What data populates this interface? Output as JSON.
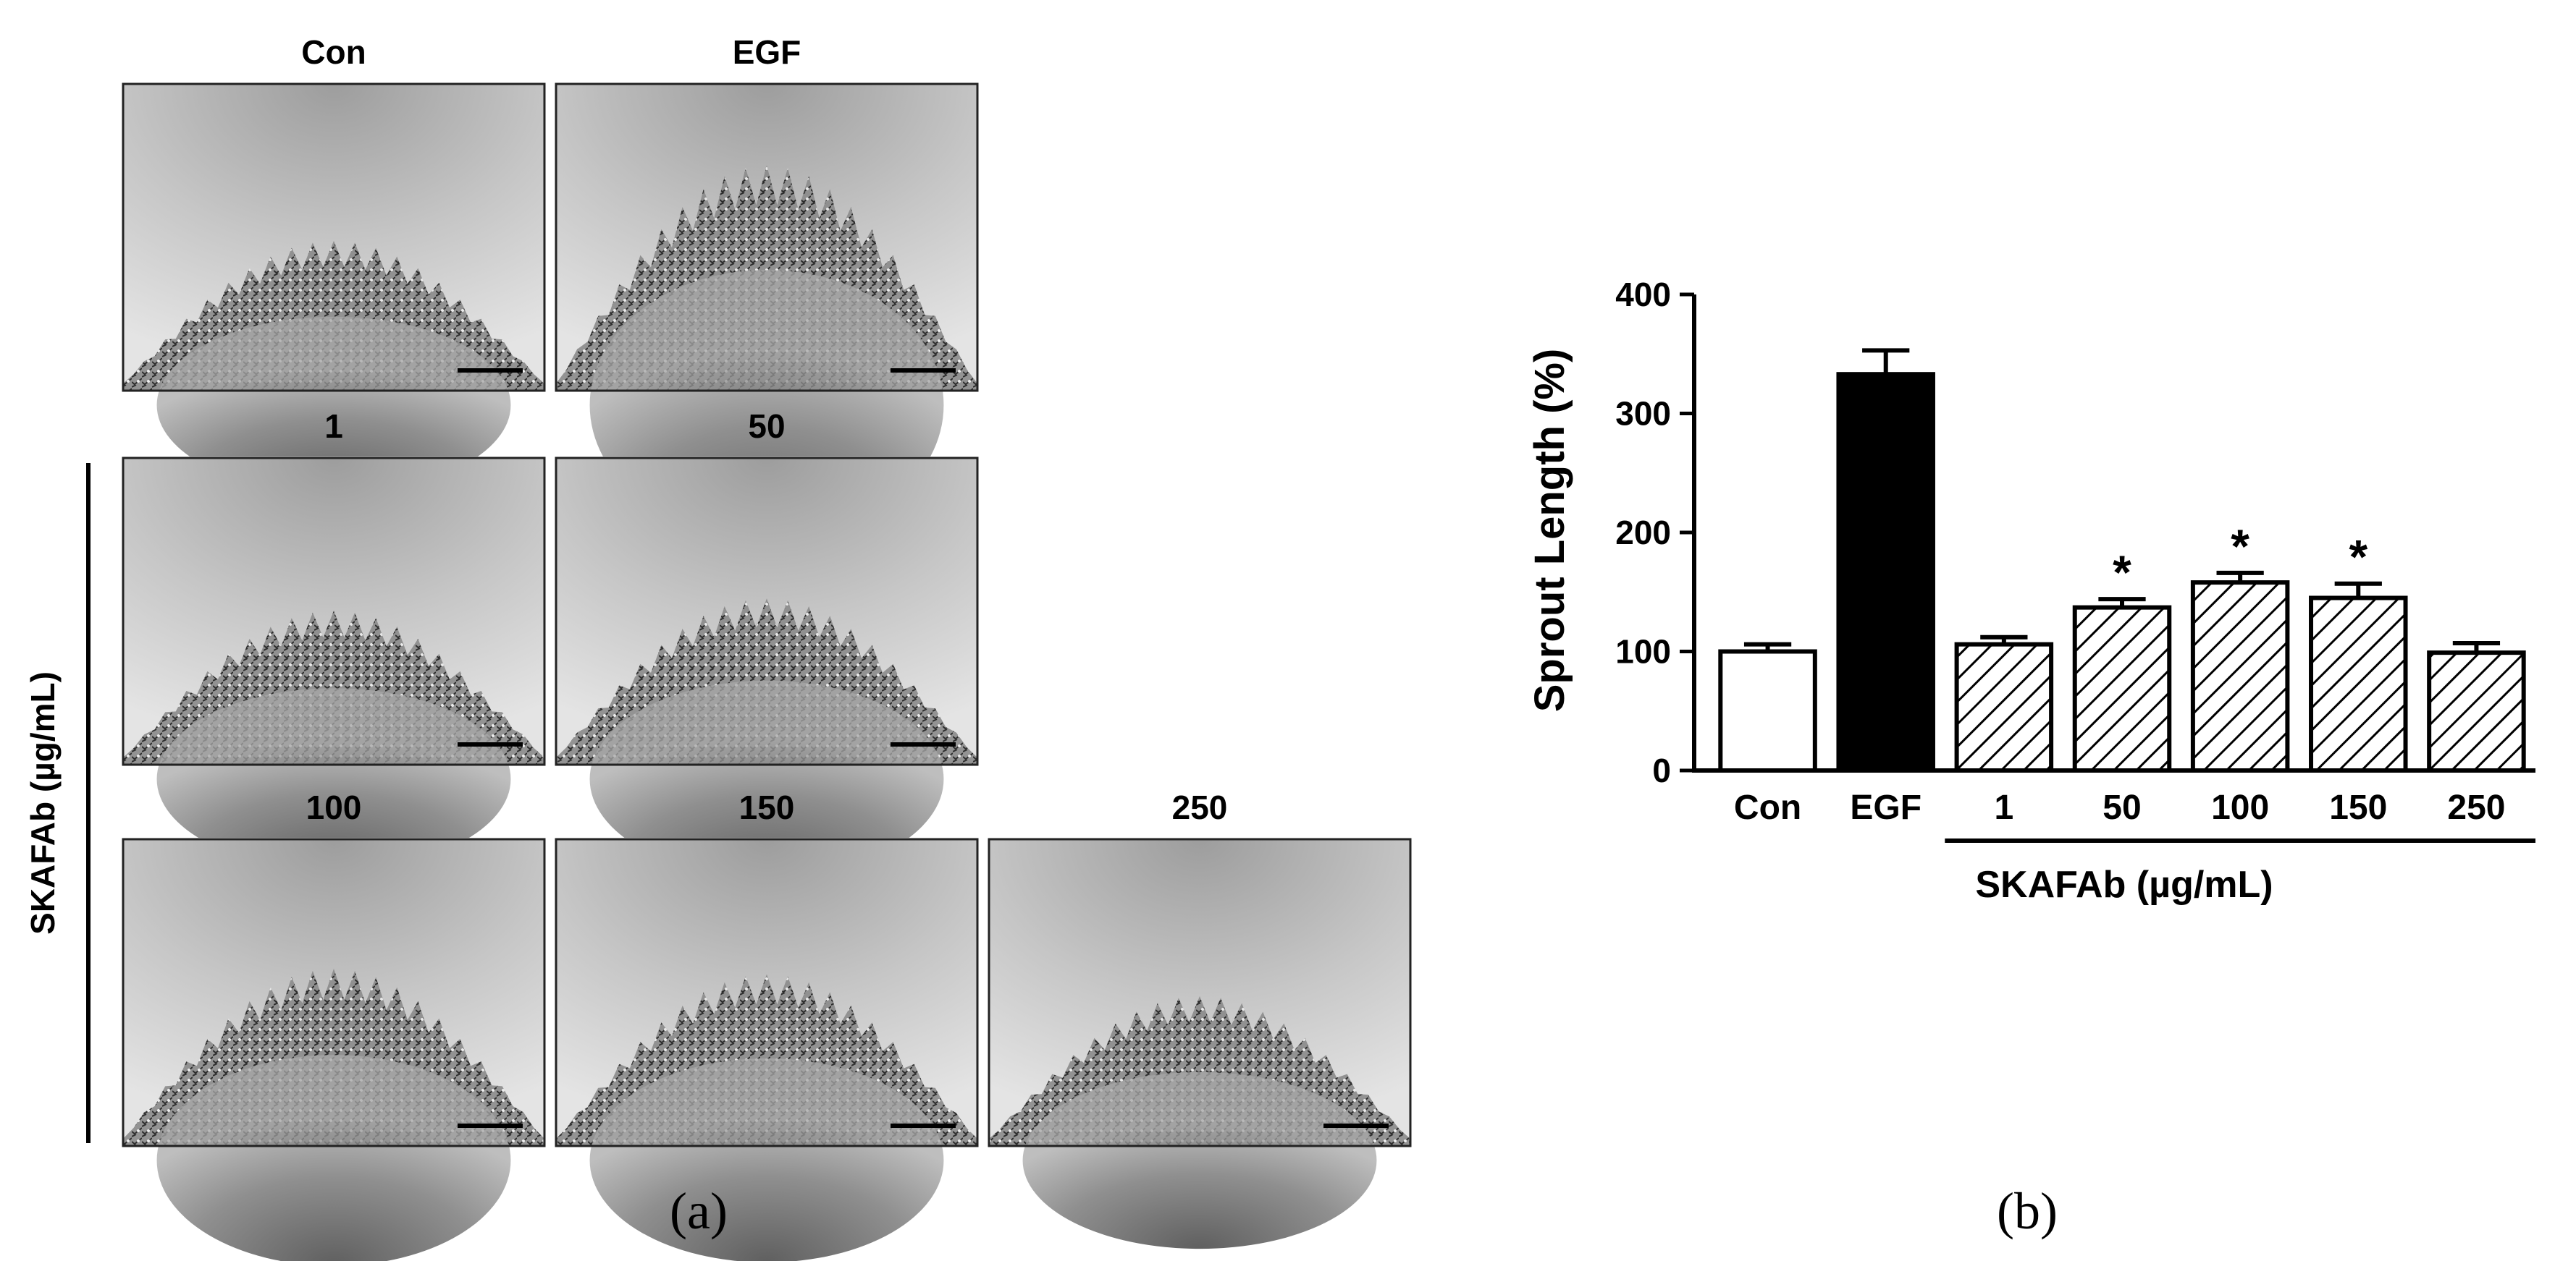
{
  "panel_a": {
    "caption": "(a)",
    "side_label": "SKAFAb (µg/mL)",
    "images": [
      {
        "label": "Con",
        "sprout": 0.3
      },
      {
        "label": "EGF",
        "sprout": 0.85
      },
      {
        "label": "1",
        "sprout": 0.33
      },
      {
        "label": "50",
        "sprout": 0.42
      },
      {
        "label": "100",
        "sprout": 0.5
      },
      {
        "label": "150",
        "sprout": 0.46
      },
      {
        "label": "250",
        "sprout": 0.3
      }
    ]
  },
  "panel_b": {
    "caption": "(b)"
  },
  "chart_data": {
    "type": "bar",
    "categories": [
      "Con",
      "EGF",
      "1",
      "50",
      "100",
      "150",
      "250"
    ],
    "values": [
      100,
      333,
      106,
      137,
      158,
      145,
      99
    ],
    "errors": [
      6,
      20,
      6,
      7,
      8,
      12,
      8
    ],
    "significant": [
      false,
      false,
      false,
      true,
      true,
      true,
      false
    ],
    "significance_marker": "*",
    "fills": [
      "white",
      "black",
      "hatched",
      "hatched",
      "hatched",
      "hatched",
      "hatched"
    ],
    "ylabel": "Sprout Length (%)",
    "xlabel": "",
    "group_label": "SKAFAb (µg/mL)",
    "group_categories": [
      "1",
      "50",
      "100",
      "150",
      "250"
    ],
    "ylim": [
      0,
      400
    ],
    "yticks": [
      0,
      100,
      200,
      300,
      400
    ],
    "grid": false,
    "colors": {
      "bar_edge": "#000000",
      "egf_fill": "#000000",
      "con_fill": "#ffffff"
    }
  }
}
